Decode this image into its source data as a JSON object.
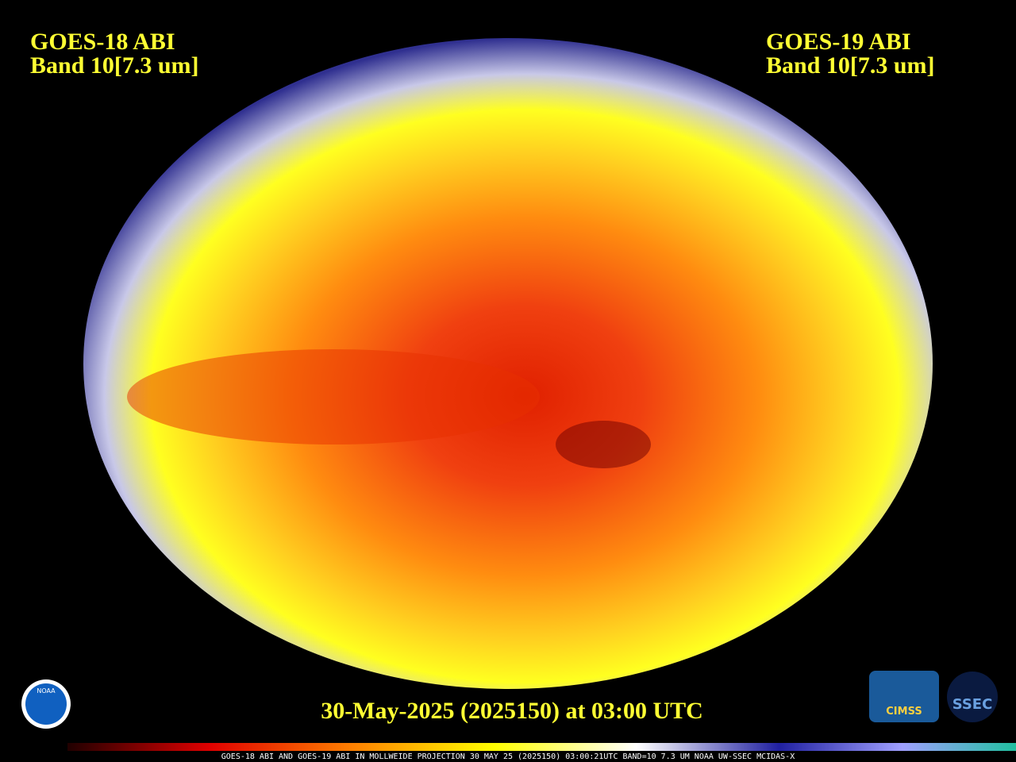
{
  "left_label": {
    "satellite": "GOES-18 ABI",
    "band": "Band 10[7.3 um]"
  },
  "right_label": {
    "satellite": "GOES-19 ABI",
    "band": "Band 10[7.3 um]"
  },
  "timestamp": "30-May-2025 (2025150) at 03:00 UTC",
  "footer": "GOES-18 ABI AND GOES-19 ABI IN MOLLWEIDE PROJECTION 30 MAY 25 (2025150) 03:00:21UTC BAND=10 7.3 UM NOAA UW-SSEC MCIDAS-X",
  "logos": {
    "noaa": "NOAA",
    "cimss": "CIMSS",
    "ssec": "SSEC"
  }
}
